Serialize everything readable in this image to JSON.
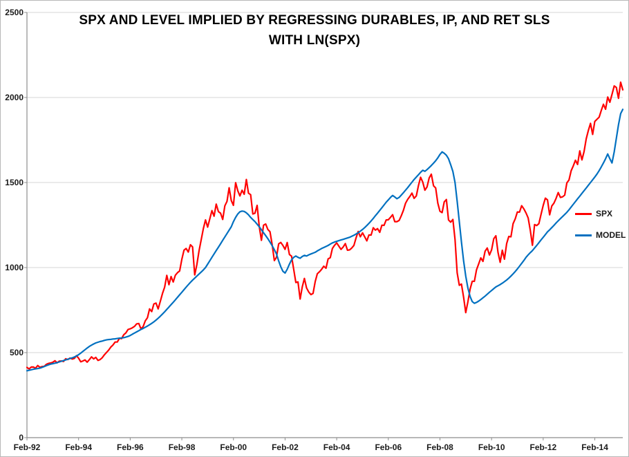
{
  "chart_data": {
    "type": "line",
    "title_line1": "SPX AND LEVEL IMPLIED BY REGRESSING DURABLES, IP, AND RET SLS",
    "title_line2": "WITH LN(SPX)",
    "xlabel": "",
    "ylabel": "",
    "x_frequency": "monthly",
    "x_start": "Feb-92",
    "x_tick_interval_months": 24,
    "x_tick_labels": [
      "Feb-92",
      "Feb-94",
      "Feb-96",
      "Feb-98",
      "Feb-00",
      "Feb-02",
      "Feb-04",
      "Feb-06",
      "Feb-08",
      "Feb-10",
      "Feb-12",
      "Feb-14"
    ],
    "y_ticks": [
      0,
      500,
      1000,
      1500,
      2000,
      2500
    ],
    "ylim": [
      0,
      2500
    ],
    "grid": "horizontal",
    "legend_position": "right-inside",
    "colors": {
      "gridline": "#D6D6D6",
      "axis": "#8C8C8C",
      "background": "#FFFFFF",
      "border": "#B7B7B7"
    },
    "series": [
      {
        "name": "SPX",
        "color": "#FF0000",
        "values": [
          413,
          404,
          415,
          415,
          408,
          424,
          414,
          418,
          419,
          431,
          436,
          439,
          443,
          452,
          440,
          450,
          451,
          448,
          464,
          459,
          468,
          462,
          466,
          482,
          467,
          446,
          451,
          457,
          444,
          458,
          475,
          463,
          472,
          454,
          459,
          470,
          487,
          501,
          515,
          533,
          545,
          562,
          562,
          584,
          582,
          605,
          616,
          636,
          640,
          646,
          654,
          669,
          671,
          640,
          652,
          687,
          705,
          757,
          741,
          786,
          791,
          757,
          801,
          848,
          885,
          954,
          899,
          947,
          915,
          955,
          970,
          980,
          1049,
          1102,
          1112,
          1091,
          1134,
          1121,
          957,
          1017,
          1099,
          1164,
          1229,
          1280,
          1238,
          1286,
          1335,
          1302,
          1373,
          1329,
          1320,
          1283,
          1363,
          1389,
          1469,
          1394,
          1366,
          1499,
          1452,
          1421,
          1455,
          1431,
          1518,
          1437,
          1429,
          1315,
          1320,
          1366,
          1240,
          1160,
          1249,
          1256,
          1224,
          1211,
          1134,
          1041,
          1060,
          1139,
          1148,
          1130,
          1107,
          1147,
          1077,
          1067,
          990,
          912,
          916,
          815,
          886,
          936,
          880,
          856,
          841,
          848,
          917,
          964,
          975,
          990,
          1008,
          996,
          1051,
          1058,
          1112,
          1131,
          1145,
          1126,
          1107,
          1121,
          1141,
          1102,
          1104,
          1115,
          1130,
          1174,
          1212,
          1181,
          1204,
          1181,
          1157,
          1192,
          1191,
          1234,
          1220,
          1229,
          1207,
          1249,
          1248,
          1280,
          1281,
          1295,
          1311,
          1270,
          1270,
          1277,
          1304,
          1336,
          1378,
          1401,
          1418,
          1438,
          1407,
          1421,
          1482,
          1531,
          1503,
          1455,
          1474,
          1527,
          1549,
          1481,
          1468,
          1379,
          1331,
          1323,
          1386,
          1400,
          1280,
          1267,
          1283,
          1166,
          969,
          896,
          903,
          826,
          735,
          798,
          873,
          919,
          919,
          987,
          1021,
          1057,
          1036,
          1096,
          1115,
          1074,
          1104,
          1169,
          1187,
          1089,
          1031,
          1102,
          1049,
          1141,
          1183,
          1181,
          1258,
          1286,
          1327,
          1326,
          1364,
          1345,
          1321,
          1292,
          1219,
          1131,
          1253,
          1247,
          1258,
          1312,
          1366,
          1408,
          1398,
          1310,
          1362,
          1379,
          1407,
          1441,
          1412,
          1416,
          1426,
          1498,
          1515,
          1569,
          1598,
          1631,
          1606,
          1686,
          1633,
          1682,
          1757,
          1806,
          1848,
          1783,
          1859,
          1872,
          1884,
          1924,
          1960,
          1931,
          2003,
          1972,
          2018,
          2068,
          2059,
          1995,
          2090,
          2045
        ]
      },
      {
        "name": "MODEL",
        "color": "#0070C0",
        "values": [
          393,
          396,
          399,
          402,
          404,
          406,
          409,
          413,
          418,
          423,
          428,
          432,
          435,
          438,
          441,
          445,
          449,
          453,
          457,
          461,
          465,
          469,
          474,
          480,
          488,
          497,
          507,
          517,
          527,
          536,
          544,
          551,
          557,
          561,
          565,
          568,
          572,
          575,
          577,
          578,
          580,
          581,
          583,
          585,
          586,
          588,
          591,
          595,
          601,
          608,
          615,
          622,
          629,
          636,
          642,
          649,
          656,
          664,
          672,
          681,
          691,
          702,
          714,
          727,
          740,
          754,
          768,
          782,
          796,
          810,
          825,
          840,
          855,
          870,
          885,
          899,
          913,
          926,
          938,
          950,
          962,
          974,
          986,
          1000,
          1020,
          1040,
          1060,
          1080,
          1100,
          1120,
          1140,
          1160,
          1180,
          1200,
          1220,
          1240,
          1270,
          1295,
          1315,
          1328,
          1332,
          1330,
          1322,
          1310,
          1295,
          1282,
          1270,
          1255,
          1240,
          1222,
          1205,
          1188,
          1170,
          1150,
          1128,
          1105,
          1080,
          1040,
          1005,
          978,
          968,
          990,
          1020,
          1045,
          1060,
          1068,
          1060,
          1055,
          1065,
          1072,
          1068,
          1075,
          1080,
          1085,
          1090,
          1098,
          1105,
          1112,
          1118,
          1124,
          1130,
          1138,
          1145,
          1150,
          1154,
          1158,
          1162,
          1166,
          1170,
          1174,
          1178,
          1184,
          1190,
          1197,
          1205,
          1214,
          1224,
          1235,
          1247,
          1260,
          1274,
          1289,
          1305,
          1320,
          1336,
          1352,
          1368,
          1384,
          1398,
          1412,
          1424,
          1415,
          1405,
          1412,
          1426,
          1440,
          1455,
          1470,
          1486,
          1502,
          1518,
          1532,
          1546,
          1560,
          1572,
          1566,
          1576,
          1588,
          1600,
          1614,
          1628,
          1645,
          1665,
          1680,
          1672,
          1660,
          1640,
          1605,
          1565,
          1500,
          1390,
          1270,
          1150,
          1040,
          950,
          880,
          830,
          800,
          790,
          795,
          803,
          812,
          822,
          832,
          843,
          855,
          865,
          876,
          886,
          893,
          900,
          908,
          917,
          927,
          938,
          950,
          963,
          977,
          992,
          1008,
          1025,
          1042,
          1060,
          1075,
          1088,
          1100,
          1115,
          1130,
          1146,
          1162,
          1178,
          1194,
          1210,
          1222,
          1235,
          1248,
          1262,
          1275,
          1288,
          1300,
          1312,
          1325,
          1340,
          1356,
          1372,
          1388,
          1404,
          1420,
          1436,
          1452,
          1468,
          1484,
          1500,
          1516,
          1532,
          1550,
          1570,
          1592,
          1615,
          1640,
          1668,
          1640,
          1615,
          1680,
          1760,
          1840,
          1905,
          1930
        ]
      }
    ]
  }
}
